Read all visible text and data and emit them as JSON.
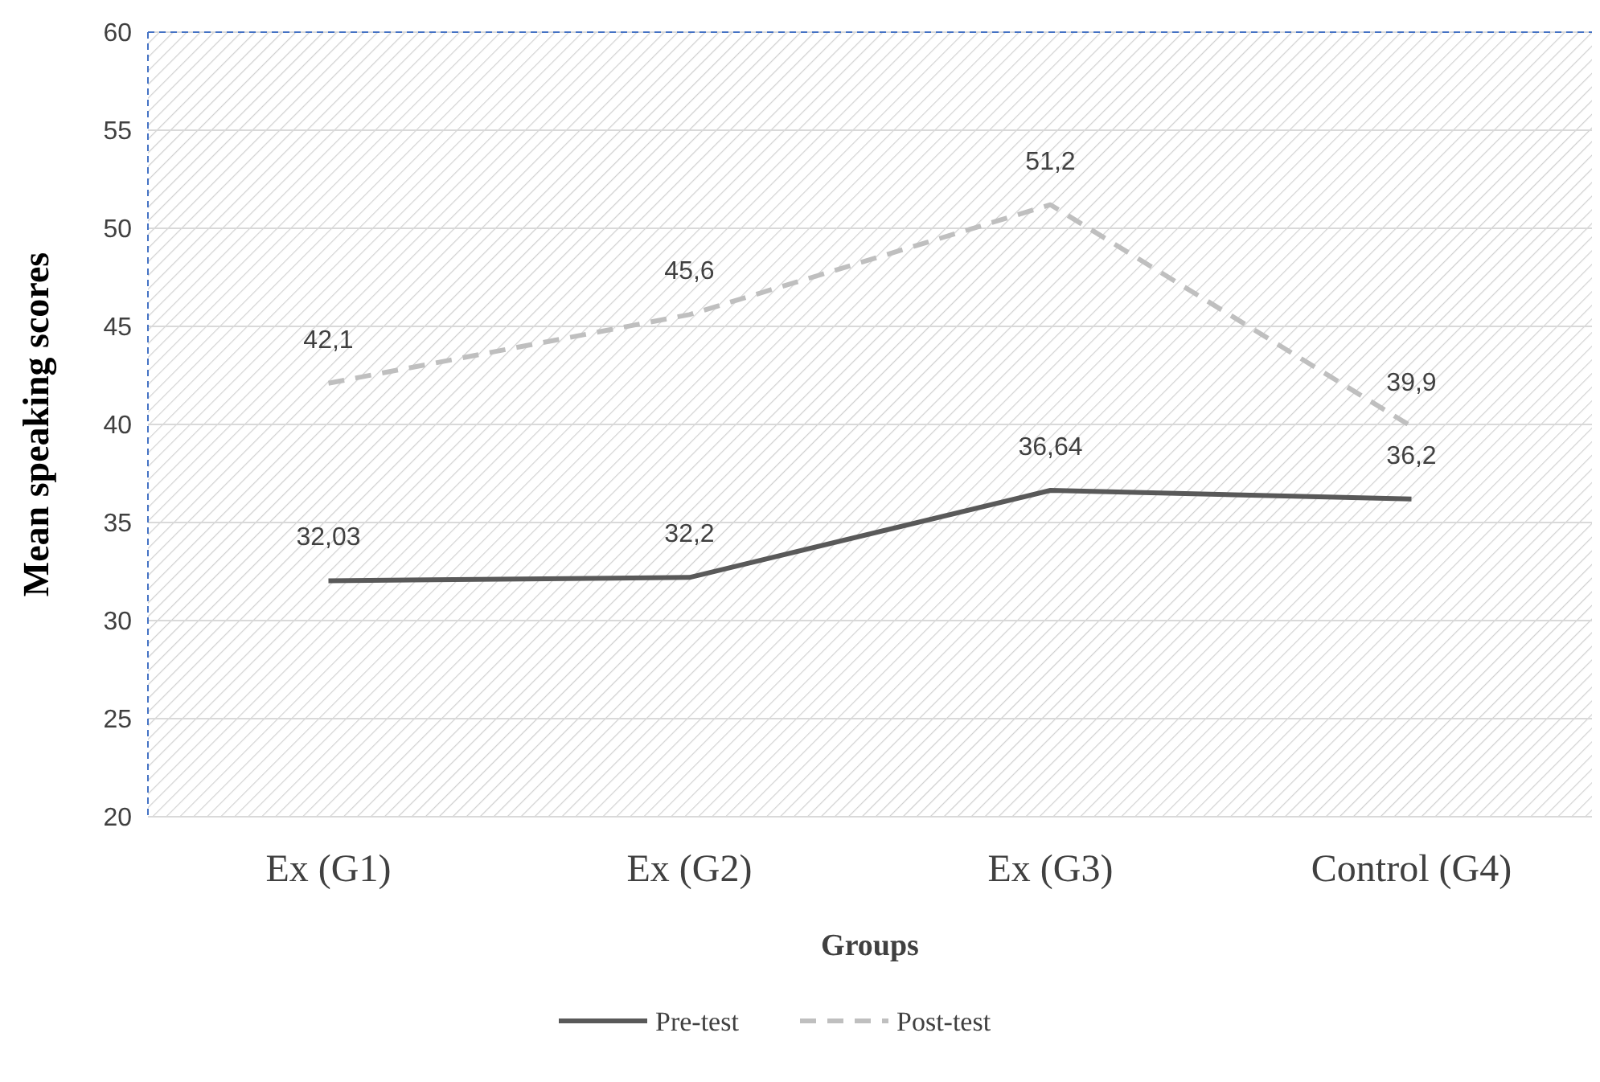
{
  "chart_data": {
    "type": "line",
    "xlabel": "Groups",
    "ylabel": "Mean speaking scores",
    "categories": [
      "Ex (G1)",
      "Ex (G2)",
      "Ex (G3)",
      "Control (G4)"
    ],
    "series": [
      {
        "name": "Pre-test",
        "color": "#595959",
        "line_style": "solid",
        "values": [
          32.03,
          32.2,
          36.64,
          36.2
        ],
        "value_labels": [
          "32,03",
          "32,2",
          "36,64",
          "36,2"
        ]
      },
      {
        "name": "Post-test",
        "color": "#bfbfbf",
        "line_style": "dashed",
        "values": [
          42.1,
          45.6,
          51.2,
          39.9
        ],
        "value_labels": [
          "42,1",
          "45,6",
          "51,2",
          "39,9"
        ]
      }
    ],
    "ylim": [
      20,
      60
    ],
    "yticks": [
      20,
      25,
      30,
      35,
      40,
      45,
      50,
      55,
      60
    ],
    "grid": "y",
    "legend": "bottom",
    "marker": "none"
  }
}
